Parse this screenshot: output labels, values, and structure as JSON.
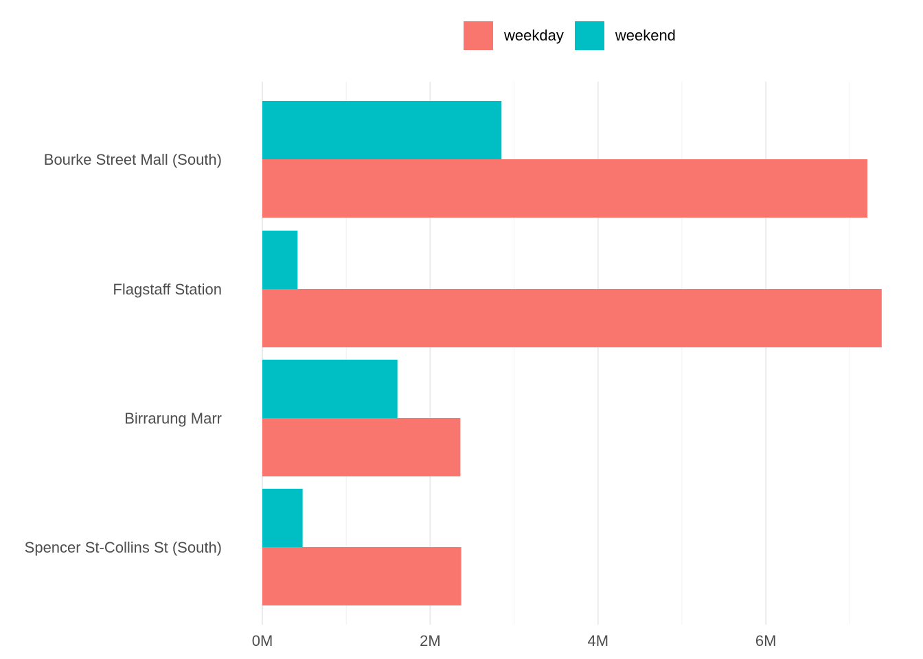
{
  "chart_data": {
    "type": "bar",
    "orientation": "horizontal",
    "categories": [
      "Bourke Street Mall (South)",
      "Flagstaff Station",
      "Birrarung Marr",
      "Spencer St-Collins St (South)"
    ],
    "series": [
      {
        "name": "weekday",
        "color": "#F8766D",
        "values": [
          7.21,
          7.38,
          2.36,
          2.37
        ]
      },
      {
        "name": "weekend",
        "color": "#00BFC4",
        "values": [
          2.85,
          0.42,
          1.61,
          0.48
        ]
      }
    ],
    "x_ticks": [
      0,
      2,
      4,
      6
    ],
    "x_tick_labels": [
      "0M",
      "2M",
      "4M",
      "6M"
    ],
    "xlim": [
      0,
      7.4
    ],
    "unit": "M",
    "grid": true,
    "legend_position": "top",
    "xlabel": "",
    "ylabel": "",
    "title": ""
  }
}
